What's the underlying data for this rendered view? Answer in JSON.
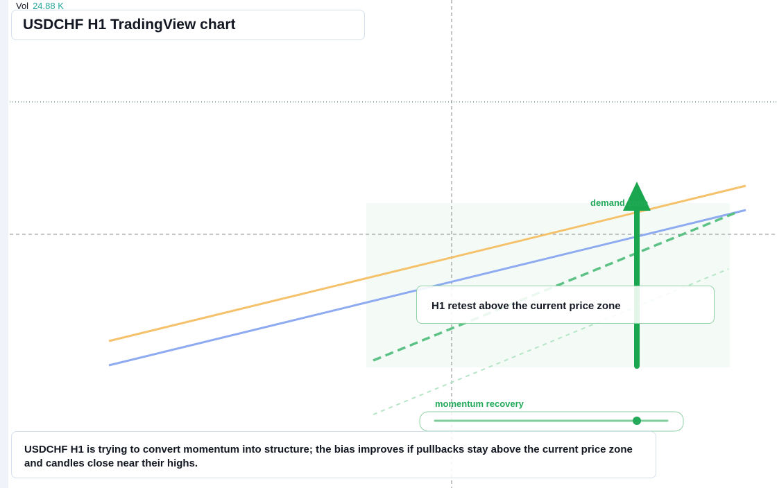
{
  "legend": {
    "label": "Vol",
    "value": "24.88 K"
  },
  "title": "USDCHF H1 TradingView chart",
  "annotations": {
    "demand": "demand zone",
    "retest": "H1 retest above the current price zone",
    "momentum": "momentum recovery"
  },
  "caption": "USDCHF H1 is trying to convert momentum into structure; the bias improves if pullbacks stay above the current price zone and candles close near their highs."
}
